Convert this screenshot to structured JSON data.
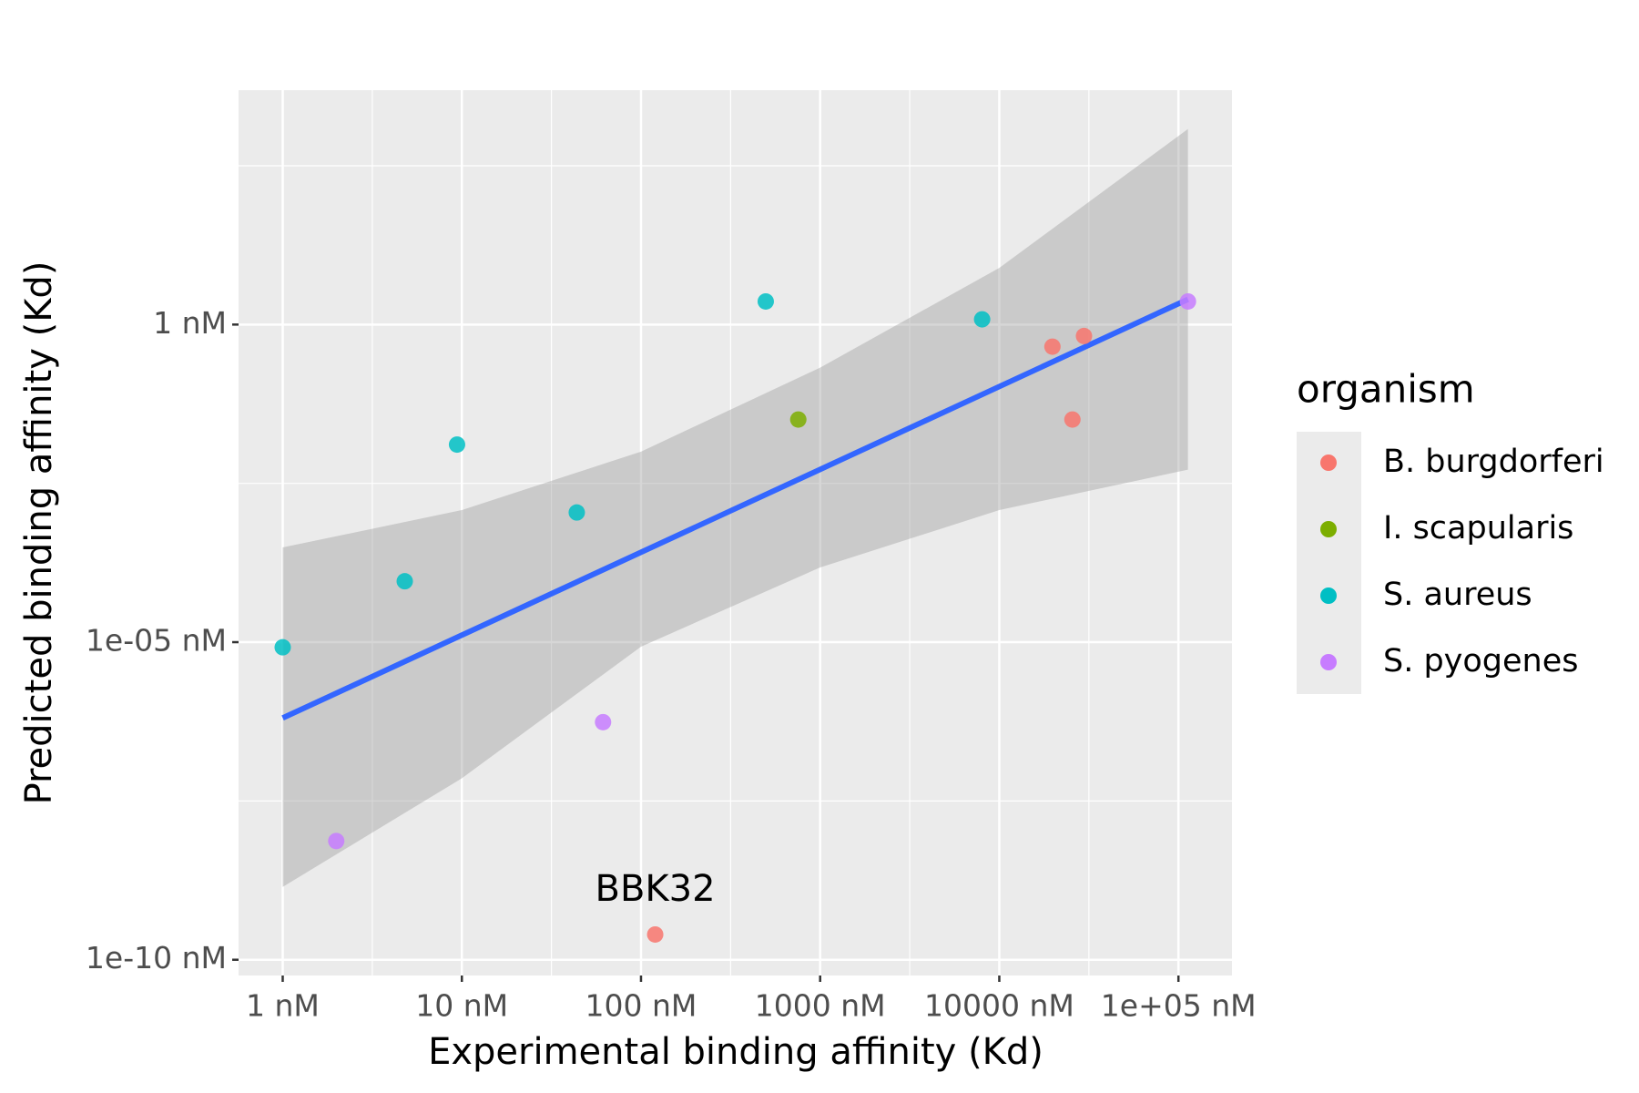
{
  "chart_data": {
    "type": "scatter",
    "x_label": "Experimental binding affinity (Kd)",
    "y_label": "Predicted binding affinity (Kd)",
    "xlog": true,
    "ylog": true,
    "grid": true,
    "xlim": [
      0.567,
      199000
    ],
    "ylim": [
      5.65e-11,
      4900
    ],
    "xticks": [
      {
        "value": 1,
        "label": "1 nM"
      },
      {
        "value": 10,
        "label": "10 nM"
      },
      {
        "value": 100,
        "label": "100 nM"
      },
      {
        "value": 1000,
        "label": "1000 nM"
      },
      {
        "value": 10000,
        "label": "10000 nM"
      },
      {
        "value": 100000,
        "label": "1e+05 nM"
      }
    ],
    "yticks": [
      {
        "value": 1e-10,
        "label": "1e-10 nM"
      },
      {
        "value": 1e-05,
        "label": "1e-05 nM"
      },
      {
        "value": 1,
        "label": "1 nM"
      }
    ],
    "legend_title": "organism",
    "legend_position": "right",
    "series": [
      {
        "name": "B. burgdorferi",
        "color": "#F8766D",
        "x": [
          120,
          19800,
          25600,
          29700
        ],
        "y": [
          2.5e-10,
          0.449,
          0.032,
          0.66
        ],
        "labels": [
          "BBK32",
          null,
          null,
          null
        ]
      },
      {
        "name": "I. scapularis",
        "color": "#7CAE00",
        "x": [
          755
        ],
        "y": [
          0.032
        ]
      },
      {
        "name": "S. aureus",
        "color": "#00BFC4",
        "x": [
          1,
          4.8,
          9.4,
          43.8,
          497,
          8020
        ],
        "y": [
          8.3e-06,
          9.1e-05,
          0.0129,
          0.0011,
          2.31,
          1.21
        ]
      },
      {
        "name": "S. pyogenes",
        "color": "#C77CFF",
        "x": [
          1.99,
          61.4,
          113000
        ],
        "y": [
          7.4e-09,
          5.5e-07,
          2.31
        ]
      }
    ],
    "fit": {
      "color": "#3366FF",
      "x": [
        1,
        113000
      ],
      "y": [
        6.4e-07,
        2.5
      ]
    },
    "band": {
      "color": "#999999",
      "x": [
        1,
        10,
        100,
        1000,
        10000,
        113000
      ],
      "upper": [
        0.00031,
        0.0012,
        0.01,
        0.21,
        7.8,
        1200
      ],
      "lower": [
        1.4e-09,
        7.2e-08,
        8.5e-06,
        0.00015,
        0.0012,
        0.0052
      ]
    }
  }
}
